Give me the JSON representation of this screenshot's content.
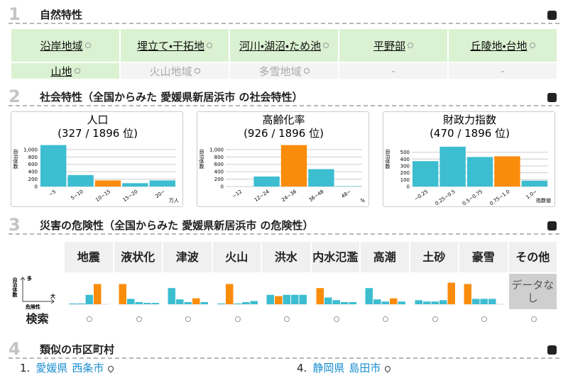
{
  "natural": {
    "number": "1",
    "title": "自然特性",
    "terrain": [
      [
        {
          "label": "沿岸地域",
          "state": "active"
        },
        {
          "label": "埋立て・干拓地",
          "state": "active"
        },
        {
          "label": "河川・湖沼・ため池",
          "state": "active"
        },
        {
          "label": "平野部",
          "state": "active"
        },
        {
          "label": "丘陵地・台地",
          "state": "active"
        }
      ],
      [
        {
          "label": "山地",
          "state": "active"
        },
        {
          "label": "火山地域",
          "state": "inactive"
        },
        {
          "label": "多雪地域",
          "state": "inactive"
        },
        {
          "label": "-",
          "state": "none"
        },
        {
          "label": "-",
          "state": "none"
        }
      ]
    ]
  },
  "social": {
    "number": "2",
    "title": "社会特性（全国からみた 愛媛県新居浜市 の社会特性）",
    "colors": {
      "bar": "#3cbdd0",
      "highlight": "#fa8c0c"
    },
    "charts": [
      {
        "type": "bar",
        "title": "人口",
        "rank": "(327 / 1896 位)",
        "y_label": "自治体数",
        "unit": "万人",
        "categories": [
          "~5",
          "5~10",
          "10~15",
          "15~20",
          "20~"
        ],
        "values": [
          1120,
          310,
          165,
          90,
          165
        ],
        "highlight": 2,
        "ylim": [
          0,
          1150
        ],
        "yticks": [
          0,
          200,
          400,
          600,
          800,
          {
            "value": 1000,
            "label": "1,000"
          }
        ]
      },
      {
        "type": "bar",
        "title": "高齢化率",
        "rank": "(926 / 1896 位)",
        "y_label": "自治体数",
        "unit": "%",
        "categories": [
          "~12",
          "12~24",
          "24~36",
          "36~48",
          "48~"
        ],
        "values": [
          0,
          270,
          1120,
          470,
          10
        ],
        "highlight": 2,
        "ylim": [
          0,
          1150
        ],
        "yticks": [
          0,
          200,
          400,
          600,
          800,
          {
            "value": 1000,
            "label": "1,000"
          }
        ]
      },
      {
        "type": "bar",
        "title": "財政力指数",
        "rank": "(470 / 1896 位)",
        "y_label": "自治体数",
        "unit": "指数値",
        "categories": [
          "~0.25",
          "0.25~0.5",
          "0.5~0.75",
          "0.75~1.0",
          "1.0~"
        ],
        "values": [
          370,
          580,
          430,
          440,
          85
        ],
        "highlight": 3,
        "ylim": [
          0,
          620
        ],
        "yticks": [
          0,
          100,
          200,
          300,
          400,
          500
        ]
      }
    ]
  },
  "hazard": {
    "number": "3",
    "title": "災害の危険性（全国からみた 愛媛県新居浜市 の危険性）",
    "chart_type": "bar",
    "ylim": [
      0,
      100
    ],
    "legend": {
      "y": "自治体数",
      "y_high": "多",
      "x": "危険性",
      "x_high": "大"
    },
    "search_label": "検索",
    "columns": [
      {
        "label": "地震",
        "values": [
          3,
          3,
          35,
          75,
          0
        ],
        "highlight": 3
      },
      {
        "label": "液状化",
        "values": [
          75,
          20,
          8,
          5,
          5
        ],
        "highlight": 0
      },
      {
        "label": "津波",
        "values": [
          60,
          18,
          8,
          22,
          8
        ],
        "highlight": 3
      },
      {
        "label": "火山",
        "values": [
          3,
          75,
          3,
          8,
          12
        ],
        "highlight": 1
      },
      {
        "label": "洪水",
        "values": [
          35,
          30,
          35,
          35,
          35
        ],
        "highlight": 1
      },
      {
        "label": "内水氾濫",
        "values": [
          60,
          25,
          15,
          8,
          8
        ],
        "highlight": 0
      },
      {
        "label": "高潮",
        "values": [
          60,
          18,
          10,
          22,
          10
        ],
        "highlight": 3
      },
      {
        "label": "土砂",
        "values": [
          15,
          10,
          10,
          15,
          80
        ],
        "highlight": 4
      },
      {
        "label": "豪雪",
        "values": [
          75,
          20,
          20,
          20,
          0
        ],
        "highlight": 0
      }
    ],
    "other": {
      "label": "その他",
      "note": "データなし"
    }
  },
  "similar": {
    "number": "4",
    "title": "類似の市区町村",
    "items": [
      {
        "rank": "1.",
        "pref": "愛媛県",
        "city": "西条市"
      },
      {
        "rank": "4.",
        "pref": "静岡県",
        "city": "島田市"
      }
    ]
  }
}
